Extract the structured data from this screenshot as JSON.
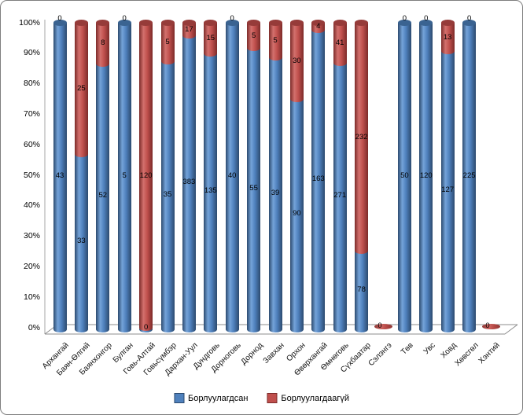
{
  "frame": {
    "background": "#ffffff",
    "border_color": "#7f7f7f",
    "axis_line_color": "#9c9c9c"
  },
  "chart_data": {
    "type": "bar",
    "subtype": "100%-stacked-3d-cylinder",
    "title": "",
    "xlabel": "",
    "ylabel": "",
    "grid": false,
    "value_labels": "shown on every segment, at segment center",
    "categories": [
      "Архангай",
      "Баян-Өлгий",
      "Баянхонгор",
      "Булган",
      "Говь-Алтай",
      "Говьсүмбэр",
      "Дархан-Уул",
      "Дундговь",
      "Дорноговь",
      "Дорнод",
      "Завхан",
      "Орхон",
      "Өвөрхангай",
      "Өмнөговь",
      "Сүхбаатар",
      "Сэлэнгэ",
      "Төв",
      "Увс",
      "Ховд",
      "Хөвсгөл",
      "Хэнтий"
    ],
    "series": [
      {
        "name": "Борлуулагдсан",
        "color": "#4f81bd",
        "light": "#74a3d9",
        "dark": "#2c4a6e",
        "cap": "#3a6391",
        "values": [
          43,
          33,
          52,
          5,
          0,
          35,
          383,
          135,
          40,
          55,
          39,
          90,
          163,
          271,
          78,
          0,
          50,
          120,
          127,
          225,
          0
        ]
      },
      {
        "name": "Борлуулагдаагүй",
        "color": "#c0504d",
        "light": "#d3706d",
        "dark": "#7c2b29",
        "cap": "#963b39",
        "values": [
          0,
          25,
          8,
          0,
          120,
          5,
          17,
          15,
          0,
          5,
          5,
          30,
          4,
          41,
          232,
          0,
          0,
          0,
          13,
          0,
          0
        ]
      }
    ],
    "y_axis": {
      "min": 0,
      "max": 100,
      "ticks": [
        "0%",
        "10%",
        "20%",
        "30%",
        "40%",
        "50%",
        "60%",
        "70%",
        "80%",
        "90%",
        "100%"
      ]
    },
    "legend": {
      "position": "bottom"
    }
  }
}
